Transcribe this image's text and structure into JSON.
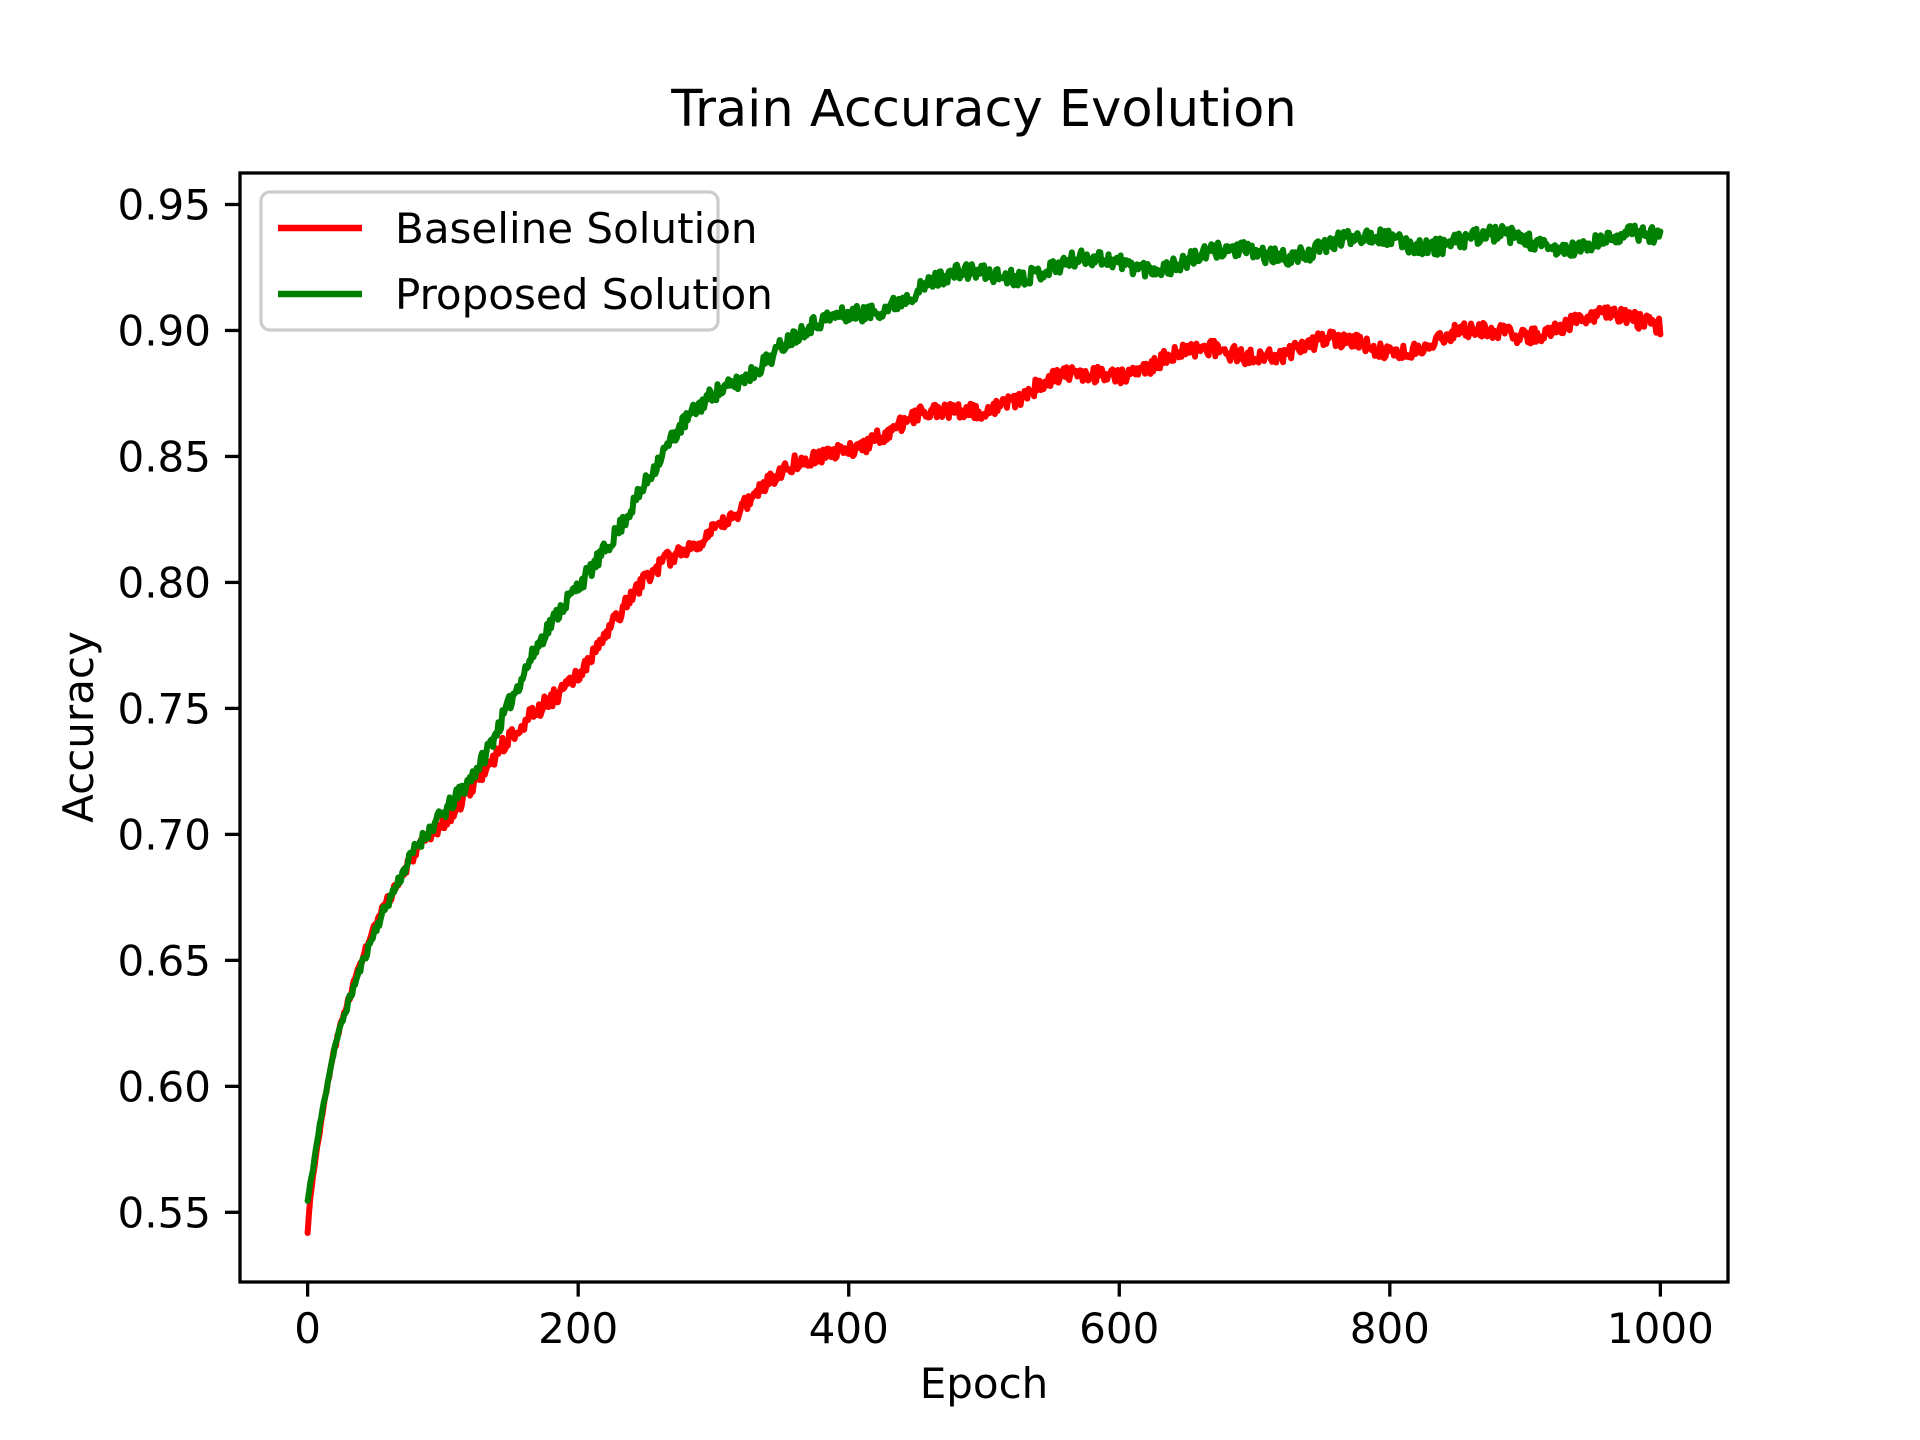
{
  "figure": {
    "background": "#ffffff",
    "text_color": "#000000",
    "spine_color": "#000000"
  },
  "legend": {
    "position": "upper left",
    "border_color": "#cccccc",
    "items": [
      {
        "label": "Baseline Solution",
        "color": "#ff0000"
      },
      {
        "label": "Proposed Solution",
        "color": "#008000"
      }
    ]
  },
  "chart_data": {
    "type": "line",
    "title": "Train Accuracy Evolution",
    "xlabel": "Epoch",
    "ylabel": "Accuracy",
    "xlim": [
      -50,
      1050
    ],
    "ylim": [
      0.5225,
      0.9625
    ],
    "x_ticks": [
      0,
      200,
      400,
      600,
      800,
      1000
    ],
    "y_ticks": [
      0.55,
      0.6,
      0.65,
      0.7,
      0.75,
      0.8,
      0.85,
      0.9,
      0.95
    ],
    "grid": false,
    "legend_position": "upper left",
    "series": [
      {
        "name": "Baseline Solution",
        "color": "#ff0000",
        "linewidth": 6,
        "x_range": [
          0,
          1000
        ],
        "noise_amp": 0.0033,
        "seed": 3,
        "points": [
          [
            0,
            0.5425
          ],
          [
            1,
            0.551
          ],
          [
            2,
            0.556
          ],
          [
            4,
            0.565
          ],
          [
            6,
            0.573
          ],
          [
            8,
            0.58
          ],
          [
            10,
            0.5865
          ],
          [
            15,
            0.602
          ],
          [
            20,
            0.6155
          ],
          [
            25,
            0.625
          ],
          [
            30,
            0.6335
          ],
          [
            40,
            0.6485
          ],
          [
            50,
            0.661
          ],
          [
            60,
            0.6715
          ],
          [
            70,
            0.681
          ],
          [
            80,
            0.6925
          ],
          [
            90,
            0.699
          ],
          [
            100,
            0.7065
          ],
          [
            115,
            0.716
          ],
          [
            130,
            0.7245
          ],
          [
            150,
            0.7365
          ],
          [
            175,
            0.752
          ],
          [
            200,
            0.7675
          ],
          [
            225,
            0.7855
          ],
          [
            250,
            0.8
          ],
          [
            275,
            0.8115
          ],
          [
            300,
            0.8225
          ],
          [
            325,
            0.8315
          ],
          [
            350,
            0.84
          ],
          [
            375,
            0.8475
          ],
          [
            400,
            0.8545
          ],
          [
            430,
            0.86
          ],
          [
            460,
            0.866
          ],
          [
            500,
            0.8725
          ],
          [
            540,
            0.8775
          ],
          [
            580,
            0.8825
          ],
          [
            620,
            0.886
          ],
          [
            660,
            0.8885
          ],
          [
            700,
            0.891
          ],
          [
            740,
            0.8935
          ],
          [
            780,
            0.8955
          ],
          [
            820,
            0.8965
          ],
          [
            860,
            0.898
          ],
          [
            900,
            0.8995
          ],
          [
            950,
            0.9015
          ],
          [
            980,
            0.9025
          ],
          [
            1000,
            0.9035
          ]
        ]
      },
      {
        "name": "Proposed Solution",
        "color": "#008000",
        "linewidth": 6,
        "x_range": [
          0,
          1000
        ],
        "noise_amp": 0.0033,
        "seed": 11,
        "points": [
          [
            0,
            0.5545
          ],
          [
            1,
            0.558
          ],
          [
            2,
            0.5615
          ],
          [
            4,
            0.568
          ],
          [
            6,
            0.5755
          ],
          [
            8,
            0.582
          ],
          [
            10,
            0.5885
          ],
          [
            15,
            0.6035
          ],
          [
            20,
            0.617
          ],
          [
            25,
            0.6265
          ],
          [
            30,
            0.635
          ],
          [
            40,
            0.65
          ],
          [
            50,
            0.663
          ],
          [
            60,
            0.6735
          ],
          [
            70,
            0.6835
          ],
          [
            80,
            0.694
          ],
          [
            90,
            0.7015
          ],
          [
            100,
            0.7095
          ],
          [
            115,
            0.7215
          ],
          [
            130,
            0.7335
          ],
          [
            150,
            0.7525
          ],
          [
            175,
            0.7755
          ],
          [
            200,
            0.797
          ],
          [
            225,
            0.8185
          ],
          [
            250,
            0.8385
          ],
          [
            275,
            0.858
          ],
          [
            300,
            0.8755
          ],
          [
            325,
            0.886
          ],
          [
            350,
            0.8955
          ],
          [
            375,
            0.9015
          ],
          [
            400,
            0.9075
          ],
          [
            430,
            0.9125
          ],
          [
            460,
            0.9165
          ],
          [
            500,
            0.921
          ],
          [
            540,
            0.9235
          ],
          [
            580,
            0.926
          ],
          [
            620,
            0.9285
          ],
          [
            660,
            0.93
          ],
          [
            700,
            0.9315
          ],
          [
            740,
            0.9325
          ],
          [
            780,
            0.9335
          ],
          [
            820,
            0.9345
          ],
          [
            860,
            0.935
          ],
          [
            900,
            0.936
          ],
          [
            950,
            0.9365
          ],
          [
            1000,
            0.9375
          ]
        ]
      }
    ]
  }
}
